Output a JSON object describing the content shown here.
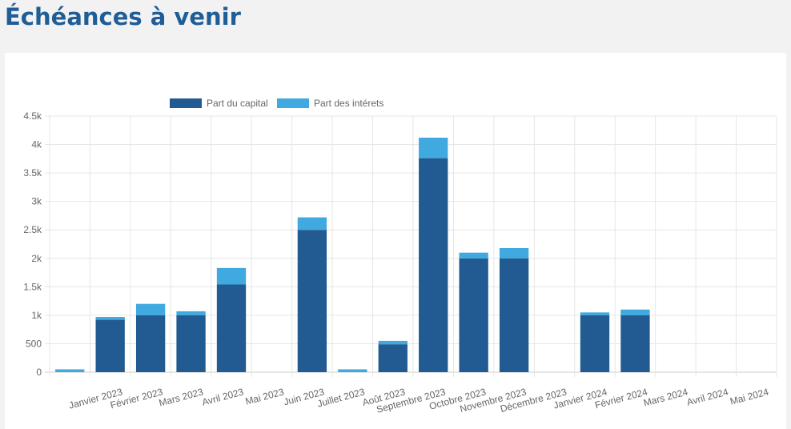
{
  "page": {
    "title": "Échéances à venir"
  },
  "colors": {
    "capital": "#215b91",
    "interets": "#3fa9e0",
    "title": "#1f5d96",
    "grid": "#e6e6e6",
    "text": "#666666"
  },
  "chart_data": {
    "type": "bar",
    "stacked": true,
    "title": "",
    "xlabel": "",
    "ylabel": "",
    "ylim": [
      0,
      4500
    ],
    "yticks": [
      "0",
      "500",
      "1k",
      "1.5k",
      "2k",
      "2.5k",
      "3k",
      "3.5k",
      "4k",
      "4.5k"
    ],
    "legend_position": "top",
    "grid": true,
    "categories": [
      "",
      "Janvier 2023",
      "Février 2023",
      "Mars 2023",
      "Avril 2023",
      "Mai 2023",
      "Juin 2023",
      "Juillet 2023",
      "Août 2023",
      "Septembre 2023",
      "Octobre 2023",
      "Novembre 2023",
      "Décembre 2023",
      "Janvier 2024",
      "Février 2024",
      "Mars 2024",
      "Avril 2024",
      "Mai 2024"
    ],
    "series": [
      {
        "name": "Part du capital",
        "values": [
          0,
          920,
          1000,
          1000,
          1540,
          0,
          2500,
          0,
          490,
          3760,
          2000,
          2000,
          0,
          1000,
          1000,
          0,
          0,
          0
        ]
      },
      {
        "name": "Part des intérets",
        "values": [
          50,
          50,
          200,
          70,
          290,
          0,
          220,
          50,
          60,
          360,
          100,
          180,
          0,
          50,
          100,
          0,
          0,
          0
        ]
      }
    ]
  }
}
